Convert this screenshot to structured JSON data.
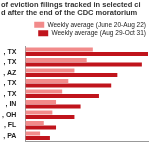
{
  "chart_data": {
    "type": "bar",
    "orientation": "horizontal",
    "title": [
      "of eviction filings tracked in selected ci",
      "d after the end of the CDC moratorium"
    ],
    "categories": [
      ", TX",
      ", TX",
      ", AZ",
      ", TX",
      ", TX",
      ", IN",
      ", OH",
      ", FL",
      ", PA"
    ],
    "series": [
      {
        "name": "Weekly average (June 20-Aug 22)",
        "color": "#f28b8b",
        "values": [
          55,
          50,
          40,
          35,
          30,
          25,
          22,
          15,
          12
        ]
      },
      {
        "name": "Weekly average (Aug 29-Oct 31)",
        "color": "#c0141c",
        "values": [
          100,
          95,
          75,
          70,
          60,
          45,
          40,
          25,
          20
        ]
      }
    ],
    "xlim": [
      0,
      100
    ],
    "tick_labels": "y",
    "grid": false,
    "legend": "top"
  }
}
